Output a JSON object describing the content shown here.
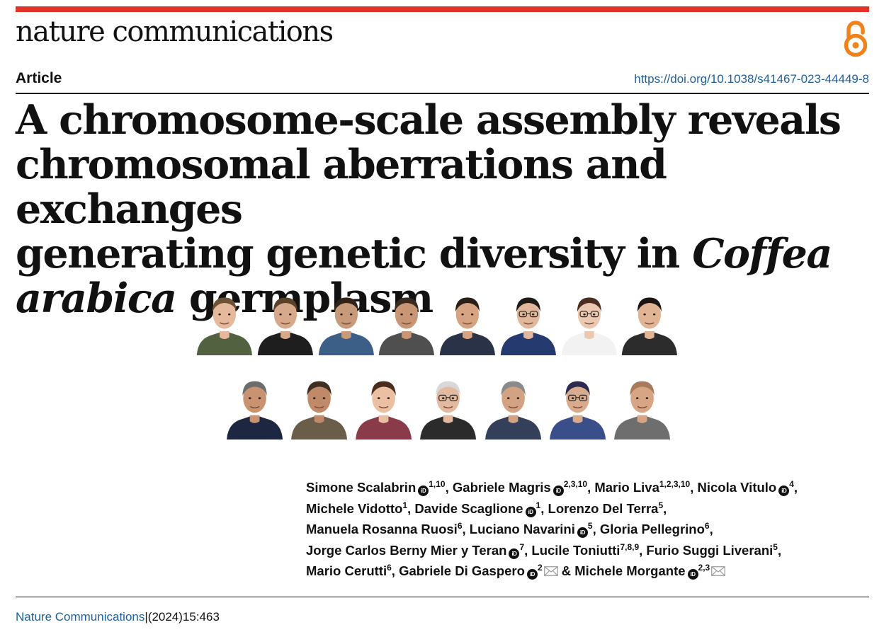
{
  "journal": "nature communications",
  "article_type": "Article",
  "doi": "https://doi.org/10.1038/s41467-023-44449-8",
  "title": {
    "line1": "A chromosome-scale assembly reveals",
    "line2": "chromosomal aberrations and exchanges",
    "line3_plain": "generating genetic diversity in ",
    "line3_italic": "Coffea",
    "line4_italic": "arabica",
    "line4_plain": " germplasm"
  },
  "orcid_icon_text": "iD",
  "authors": [
    {
      "name": "Simone Scalabrin",
      "orcid": true,
      "affil": "1,10",
      "mail": false,
      "sep": ", "
    },
    {
      "name": "Gabriele Magris",
      "orcid": true,
      "affil": "2,3,10",
      "mail": false,
      "sep": ", "
    },
    {
      "name": "Mario Liva",
      "orcid": false,
      "affil": "1,2,3,10",
      "mail": false,
      "sep": ", "
    },
    {
      "name": "Nicola Vitulo",
      "orcid": true,
      "affil": "4",
      "mail": false,
      "sep": ","
    },
    {
      "name": "Michele Vidotto",
      "orcid": false,
      "affil": "1",
      "mail": false,
      "sep": ", "
    },
    {
      "name": "Davide Scaglione",
      "orcid": true,
      "affil": "1",
      "mail": false,
      "sep": ", "
    },
    {
      "name": "Lorenzo Del Terra",
      "orcid": false,
      "affil": "5",
      "mail": false,
      "sep": ","
    },
    {
      "name": "Manuela Rosanna Ruosi",
      "orcid": false,
      "affil": "6",
      "mail": false,
      "sep": ", "
    },
    {
      "name": "Luciano Navarini",
      "orcid": true,
      "affil": "5",
      "mail": false,
      "sep": ", "
    },
    {
      "name": "Gloria Pellegrino",
      "orcid": false,
      "affil": "6",
      "mail": false,
      "sep": ","
    },
    {
      "name": "Jorge Carlos Berny Mier y Teran",
      "orcid": true,
      "affil": "7",
      "mail": false,
      "sep": ", "
    },
    {
      "name": "Lucile Toniutti",
      "orcid": false,
      "affil": "7,8,9",
      "mail": false,
      "sep": ", "
    },
    {
      "name": "Furio Suggi Liverani",
      "orcid": false,
      "affil": "5",
      "mail": false,
      "sep": ","
    },
    {
      "name": "Mario Cerutti",
      "orcid": false,
      "affil": "6",
      "mail": false,
      "sep": ", "
    },
    {
      "name": "Gabriele Di Gaspero",
      "orcid": true,
      "affil": "2",
      "mail": true,
      "sep": " & "
    },
    {
      "name": "Michele Morgante",
      "orcid": true,
      "affil": "2,3",
      "mail": true,
      "sep": ""
    }
  ],
  "author_line_breaks_after": [
    3,
    6,
    9,
    12
  ],
  "footer": {
    "journal_link": "Nature Communications",
    "separator": "|",
    "citation": "(2024)15:463"
  },
  "colors": {
    "top_bar": "#e2322a",
    "link": "#1f5f9e",
    "open_access": "#f0821e"
  },
  "portraits_row1": [
    {
      "skin": "#e6b99c",
      "hair": "#6d5236",
      "shirt": "#52613f",
      "bg": "#ffffff",
      "glasses": false
    },
    {
      "skin": "#d7a98a",
      "hair": "#5a4129",
      "shirt": "#1e1e1e",
      "bg": "#ffffff",
      "glasses": false
    },
    {
      "skin": "#c79a7a",
      "hair": "#2f2216",
      "shirt": "#3b5f86",
      "bg": "#ffffff",
      "glasses": false
    },
    {
      "skin": "#c99675",
      "hair": "#3a2b1f",
      "shirt": "#4f4f4f",
      "bg": "#ffffff",
      "glasses": false
    },
    {
      "skin": "#d6a482",
      "hair": "#2a2018",
      "shirt": "#2a3248",
      "bg": "#ffffff",
      "glasses": false
    },
    {
      "skin": "#e1b89c",
      "hair": "#1f1a16",
      "shirt": "#253a6e",
      "bg": "#ffffff",
      "glasses": true
    },
    {
      "skin": "#ecc8b0",
      "hair": "#4a2e22",
      "shirt": "#f2f2f2",
      "bg": "#ffffff",
      "glasses": true
    },
    {
      "skin": "#e2b496",
      "hair": "#1b1514",
      "shirt": "#2c2c2c",
      "bg": "#ffffff",
      "glasses": false
    }
  ],
  "portraits_row2": [
    {
      "skin": "#c99372",
      "hair": "#6c6c6c",
      "shirt": "#1d2742",
      "bg": "#ffffff",
      "glasses": false
    },
    {
      "skin": "#c08a68",
      "hair": "#3f2f22",
      "shirt": "#6a5e4a",
      "bg": "#ffffff",
      "glasses": false
    },
    {
      "skin": "#ebbfa2",
      "hair": "#4a2c1c",
      "shirt": "#8a3b4a",
      "bg": "#ffffff",
      "glasses": false
    },
    {
      "skin": "#e3b9a0",
      "hair": "#d8d8d8",
      "shirt": "#2b2b2b",
      "bg": "#ffffff",
      "glasses": true
    },
    {
      "skin": "#d3a283",
      "hair": "#8a8a8a",
      "shirt": "#34405a",
      "bg": "#ffffff",
      "glasses": false
    },
    {
      "skin": "#d9ab8c",
      "hair": "#2c2a4e",
      "shirt": "#3a4f8a",
      "bg": "#ffffff",
      "glasses": true
    },
    {
      "skin": "#d8a584",
      "hair": "#a87a5a",
      "shirt": "#6e6e6e",
      "bg": "#ffffff",
      "glasses": false
    }
  ]
}
